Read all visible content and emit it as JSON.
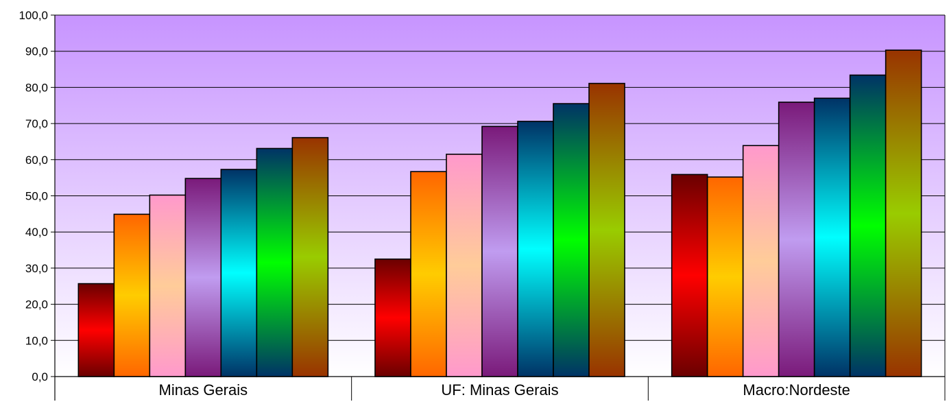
{
  "chart_data": {
    "type": "bar",
    "categories": [
      "Minas Gerais",
      "UF: Minas Gerais",
      "Macro:Nordeste"
    ],
    "series": [
      {
        "values": [
          25.7,
          32.5,
          55.9
        ]
      },
      {
        "values": [
          44.9,
          56.7,
          55.2
        ]
      },
      {
        "values": [
          50.2,
          61.5,
          63.9
        ]
      },
      {
        "values": [
          54.8,
          69.2,
          75.9
        ]
      },
      {
        "values": [
          57.3,
          70.6,
          77.0
        ]
      },
      {
        "values": [
          63.1,
          75.5,
          83.4
        ]
      },
      {
        "values": [
          66.1,
          81.1,
          90.3
        ]
      }
    ],
    "ylim": [
      0,
      100
    ],
    "yticks": [
      "0,0",
      "10,0",
      "20,0",
      "30,0",
      "40,0",
      "50,0",
      "60,0",
      "70,0",
      "80,0",
      "90,0",
      "100,0"
    ],
    "grid": true,
    "legend": "none",
    "colors": {
      "background_top": "#c794ff",
      "background_bottom": "#ffffff",
      "series": [
        [
          "#6b0000",
          "#ff0000",
          "#6b0000"
        ],
        [
          "#ff6600",
          "#ffcc00",
          "#ff6600"
        ],
        [
          "#ff99cc",
          "#ffcc99",
          "#ff99cc"
        ],
        [
          "#7a1a7a",
          "#c09cf0",
          "#7a1a7a"
        ],
        [
          "#003366",
          "#00ffff",
          "#003366"
        ],
        [
          "#003366",
          "#00ff00",
          "#003366"
        ],
        [
          "#993300",
          "#99cc00",
          "#993300"
        ]
      ]
    }
  }
}
